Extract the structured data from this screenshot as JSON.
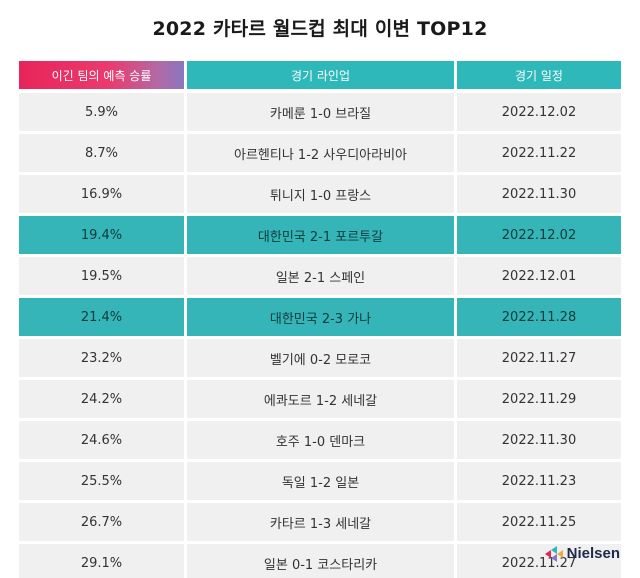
{
  "title": "2022 카타르 월드컵 최대 이변 TOP12",
  "columns": [
    "이긴 팀의 예측 승률",
    "경기 라인업",
    "경기 일정"
  ],
  "rows": [
    {
      "rate": "5.9%",
      "match": "카메룬 1-0 브라질",
      "date": "2022.12.02",
      "highlight": false
    },
    {
      "rate": "8.7%",
      "match": "아르헨티나 1-2 사우디아라비아",
      "date": "2022.11.22",
      "highlight": false
    },
    {
      "rate": "16.9%",
      "match": "튀니지 1-0 프랑스",
      "date": "2022.11.30",
      "highlight": false
    },
    {
      "rate": "19.4%",
      "match": "대한민국 2-1 포르투갈",
      "date": "2022.12.02",
      "highlight": true
    },
    {
      "rate": "19.5%",
      "match": "일본 2-1 스페인",
      "date": "2022.12.01",
      "highlight": false
    },
    {
      "rate": "21.4%",
      "match": "대한민국 2-3 가나",
      "date": "2022.11.28",
      "highlight": true
    },
    {
      "rate": "23.2%",
      "match": "벨기에 0-2 모로코",
      "date": "2022.11.27",
      "highlight": false
    },
    {
      "rate": "24.2%",
      "match": "에콰도르 1-2 세네갈",
      "date": "2022.11.29",
      "highlight": false
    },
    {
      "rate": "24.6%",
      "match": "호주 1-0 덴마크",
      "date": "2022.11.30",
      "highlight": false
    },
    {
      "rate": "25.5%",
      "match": "독일 1-2 일본",
      "date": "2022.11.23",
      "highlight": false
    },
    {
      "rate": "26.7%",
      "match": "카타르 1-3 세네갈",
      "date": "2022.11.25",
      "highlight": false
    },
    {
      "rate": "29.1%",
      "match": "일본 0-1 코스타리카",
      "date": "2022.11.27",
      "highlight": false
    }
  ],
  "logo": {
    "text": "Nielsen",
    "icon": "nielsen-logo-icon"
  },
  "colors": {
    "header_teal": "#2fb8b9",
    "header_pink": "#e8245a",
    "highlight": "#35b5b7",
    "row_bg": "#f0f0f0"
  }
}
